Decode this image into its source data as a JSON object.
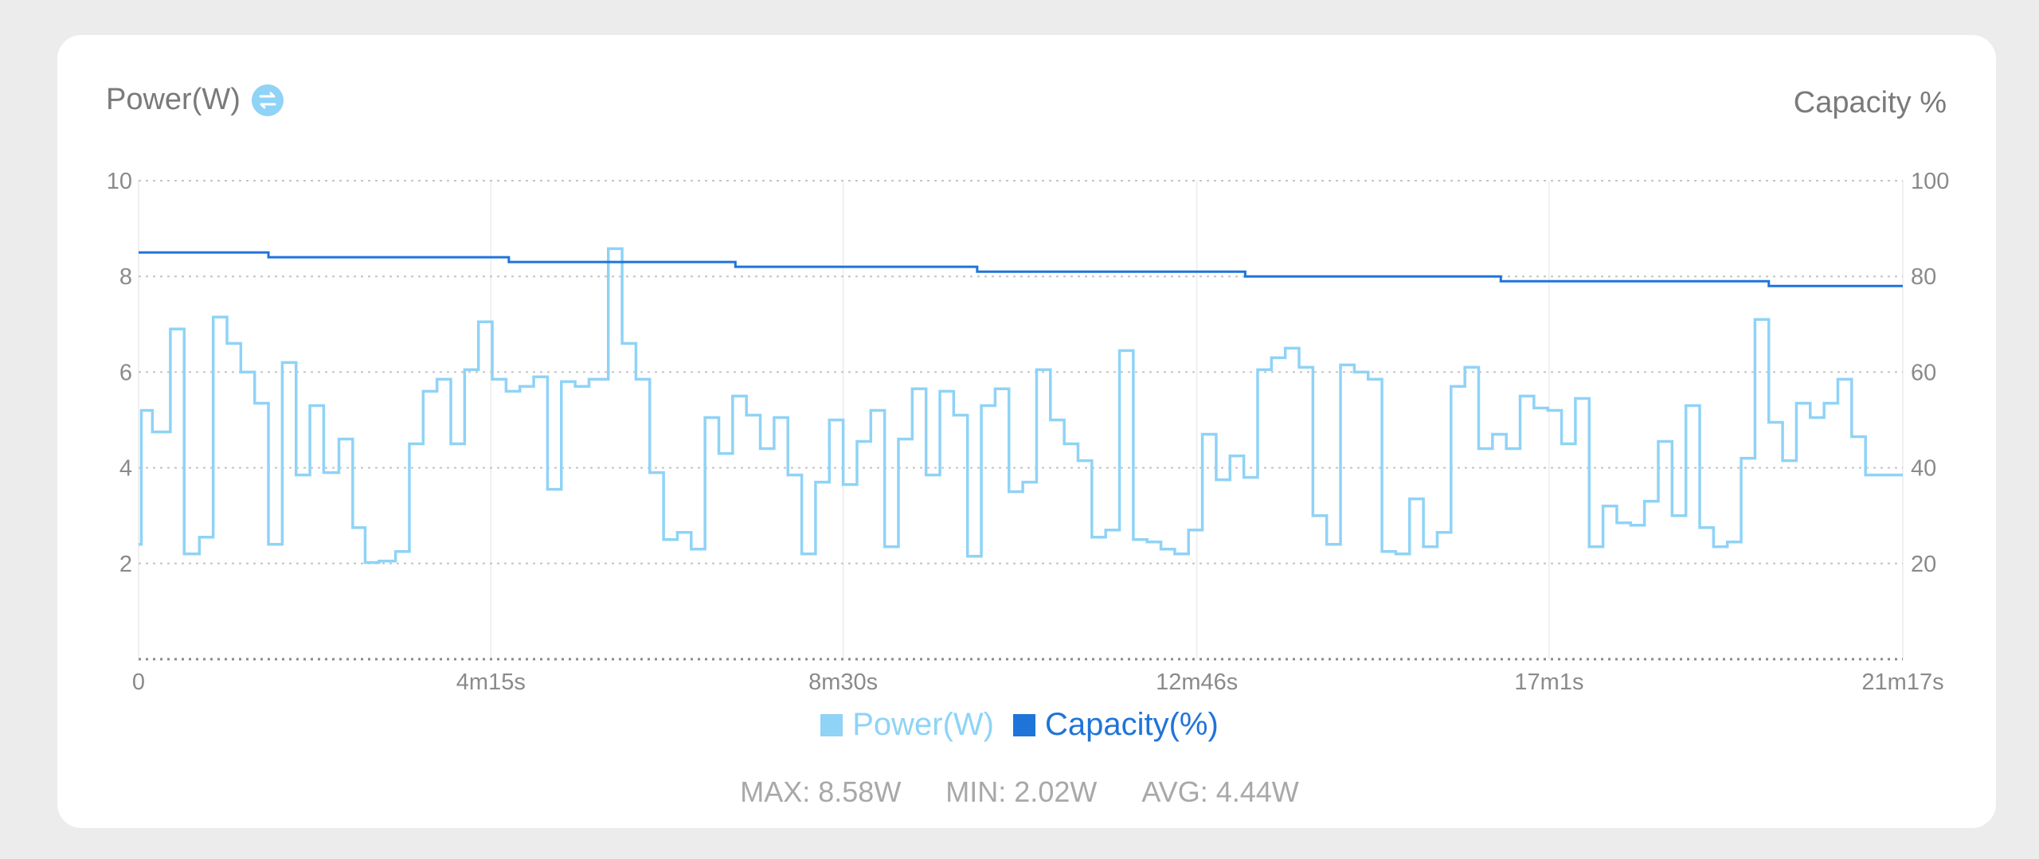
{
  "header": {
    "left_title": "Power(W)",
    "right_title": "Capacity %",
    "swap_icon": "swap-arrows-icon"
  },
  "legend": {
    "items": [
      {
        "label": "Power(W)",
        "color": "#8fd3f6"
      },
      {
        "label": "Capacity(%)",
        "color": "#1f74d9"
      }
    ]
  },
  "stats": {
    "max": "MAX: 8.58W",
    "min": "MIN: 2.02W",
    "avg": "AVG: 4.44W"
  },
  "chart_data": {
    "type": "line",
    "step": true,
    "x_unit": "seconds",
    "x_range": [
      0,
      1277
    ],
    "x_ticks": [
      {
        "value": 0,
        "label": "0"
      },
      {
        "value": 255,
        "label": "4m15s"
      },
      {
        "value": 510,
        "label": "8m30s"
      },
      {
        "value": 766,
        "label": "12m46s"
      },
      {
        "value": 1021,
        "label": "17m1s"
      },
      {
        "value": 1277,
        "label": "21m17s"
      }
    ],
    "y_left": {
      "label": "Power(W)",
      "range": [
        0,
        10
      ],
      "ticks": [
        2,
        4,
        6,
        8,
        10
      ]
    },
    "y_right": {
      "label": "Capacity %",
      "range": [
        0,
        100
      ],
      "ticks": [
        20,
        40,
        60,
        80,
        100
      ]
    },
    "grid": true,
    "legend_position": "bottom-center",
    "series": [
      {
        "name": "Power(W)",
        "axis": "left",
        "color": "#8fd3f6",
        "points": [
          [
            0,
            2.4
          ],
          [
            2,
            5.2
          ],
          [
            10,
            4.75
          ],
          [
            23,
            6.9
          ],
          [
            33,
            2.2
          ],
          [
            44,
            2.55
          ],
          [
            54,
            7.15
          ],
          [
            64,
            6.6
          ],
          [
            74,
            6.0
          ],
          [
            84,
            5.35
          ],
          [
            94,
            2.4
          ],
          [
            104,
            6.2
          ],
          [
            114,
            3.85
          ],
          [
            124,
            5.3
          ],
          [
            134,
            3.9
          ],
          [
            145,
            4.6
          ],
          [
            155,
            2.75
          ],
          [
            164,
            2.02
          ],
          [
            174,
            2.05
          ],
          [
            186,
            2.25
          ],
          [
            196,
            4.5
          ],
          [
            206,
            5.6
          ],
          [
            216,
            5.85
          ],
          [
            226,
            4.5
          ],
          [
            236,
            6.05
          ],
          [
            246,
            7.05
          ],
          [
            256,
            5.85
          ],
          [
            266,
            5.6
          ],
          [
            276,
            5.7
          ],
          [
            286,
            5.9
          ],
          [
            296,
            3.55
          ],
          [
            306,
            5.8
          ],
          [
            316,
            5.7
          ],
          [
            326,
            5.85
          ],
          [
            340,
            8.58
          ],
          [
            350,
            6.6
          ],
          [
            360,
            5.85
          ],
          [
            370,
            3.9
          ],
          [
            380,
            2.5
          ],
          [
            390,
            2.65
          ],
          [
            400,
            2.3
          ],
          [
            410,
            5.05
          ],
          [
            420,
            4.3
          ],
          [
            430,
            5.5
          ],
          [
            440,
            5.1
          ],
          [
            450,
            4.4
          ],
          [
            460,
            5.05
          ],
          [
            470,
            3.85
          ],
          [
            480,
            2.2
          ],
          [
            490,
            3.7
          ],
          [
            500,
            5.0
          ],
          [
            510,
            3.65
          ],
          [
            520,
            4.55
          ],
          [
            530,
            5.2
          ],
          [
            540,
            2.35
          ],
          [
            550,
            4.6
          ],
          [
            560,
            5.65
          ],
          [
            570,
            3.85
          ],
          [
            580,
            5.6
          ],
          [
            590,
            5.1
          ],
          [
            600,
            2.15
          ],
          [
            610,
            5.3
          ],
          [
            620,
            5.65
          ],
          [
            630,
            3.5
          ],
          [
            640,
            3.7
          ],
          [
            650,
            6.05
          ],
          [
            660,
            5.0
          ],
          [
            670,
            4.5
          ],
          [
            680,
            4.15
          ],
          [
            690,
            2.55
          ],
          [
            700,
            2.7
          ],
          [
            710,
            6.45
          ],
          [
            720,
            2.5
          ],
          [
            730,
            2.45
          ],
          [
            740,
            2.3
          ],
          [
            750,
            2.2
          ],
          [
            760,
            2.7
          ],
          [
            770,
            4.7
          ],
          [
            780,
            3.75
          ],
          [
            790,
            4.25
          ],
          [
            800,
            3.8
          ],
          [
            810,
            6.05
          ],
          [
            820,
            6.3
          ],
          [
            830,
            6.5
          ],
          [
            840,
            6.1
          ],
          [
            850,
            3.0
          ],
          [
            860,
            2.4
          ],
          [
            870,
            6.15
          ],
          [
            880,
            6.0
          ],
          [
            890,
            5.85
          ],
          [
            900,
            2.25
          ],
          [
            910,
            2.2
          ],
          [
            920,
            3.35
          ],
          [
            930,
            2.35
          ],
          [
            940,
            2.65
          ],
          [
            950,
            5.7
          ],
          [
            960,
            6.1
          ],
          [
            970,
            4.4
          ],
          [
            980,
            4.7
          ],
          [
            990,
            4.4
          ],
          [
            1000,
            5.5
          ],
          [
            1010,
            5.25
          ],
          [
            1020,
            5.2
          ],
          [
            1030,
            4.5
          ],
          [
            1040,
            5.45
          ],
          [
            1050,
            2.35
          ],
          [
            1060,
            3.2
          ],
          [
            1070,
            2.85
          ],
          [
            1080,
            2.8
          ],
          [
            1090,
            3.3
          ],
          [
            1100,
            4.55
          ],
          [
            1110,
            3.0
          ],
          [
            1120,
            5.3
          ],
          [
            1130,
            2.75
          ],
          [
            1140,
            2.35
          ],
          [
            1150,
            2.45
          ],
          [
            1160,
            4.2
          ],
          [
            1170,
            7.1
          ],
          [
            1180,
            4.95
          ],
          [
            1190,
            4.15
          ],
          [
            1200,
            5.35
          ],
          [
            1210,
            5.05
          ],
          [
            1220,
            5.35
          ],
          [
            1230,
            5.85
          ],
          [
            1240,
            4.65
          ],
          [
            1250,
            3.85
          ],
          [
            1277,
            3.85
          ]
        ]
      },
      {
        "name": "Capacity(%)",
        "axis": "right",
        "color": "#1f74d9",
        "points": [
          [
            0,
            85
          ],
          [
            94,
            84
          ],
          [
            268,
            83
          ],
          [
            432,
            82
          ],
          [
            607,
            81
          ],
          [
            801,
            80
          ],
          [
            986,
            79
          ],
          [
            1180,
            78
          ],
          [
            1277,
            78
          ]
        ]
      }
    ]
  }
}
